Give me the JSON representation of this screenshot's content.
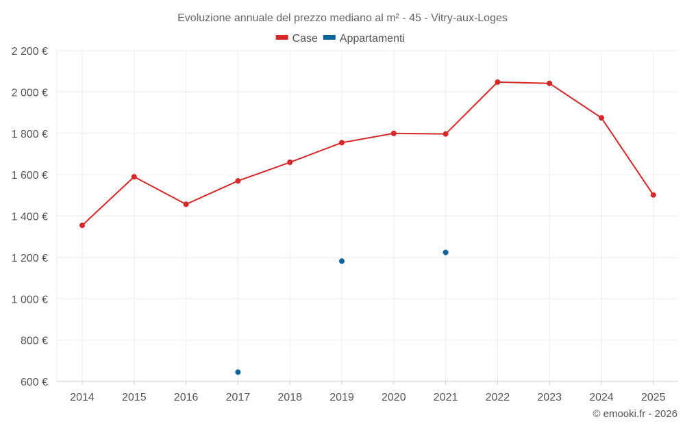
{
  "chart_data": {
    "type": "line",
    "title": "Evoluzione annuale del prezzo mediano al m² - 45 - Vitry-aux-Loges",
    "x": [
      "2014",
      "2015",
      "2016",
      "2017",
      "2018",
      "2019",
      "2020",
      "2021",
      "2022",
      "2023",
      "2024",
      "2025"
    ],
    "ylim": [
      600,
      2200
    ],
    "yticks": [
      600,
      800,
      1000,
      1200,
      1400,
      1600,
      1800,
      2000,
      2200
    ],
    "ytick_labels": [
      "600 €",
      "800 €",
      "1 000 €",
      "1 200 €",
      "1 400 €",
      "1 600 €",
      "1 800 €",
      "2 000 €",
      "2 200 €"
    ],
    "grid": true,
    "legend_position": "top-center",
    "series": [
      {
        "name": "Case",
        "color": "#d62728",
        "connected": true,
        "values": [
          1355,
          1590,
          1457,
          1570,
          1660,
          1755,
          1800,
          1797,
          2048,
          2042,
          1875,
          1502
        ]
      },
      {
        "name": "Appartamenti",
        "color": "#08629c",
        "connected": false,
        "values": [
          null,
          null,
          null,
          645,
          null,
          1182,
          null,
          1224,
          null,
          null,
          null,
          null
        ]
      }
    ]
  },
  "credit": "© emooki.fr - 2026"
}
